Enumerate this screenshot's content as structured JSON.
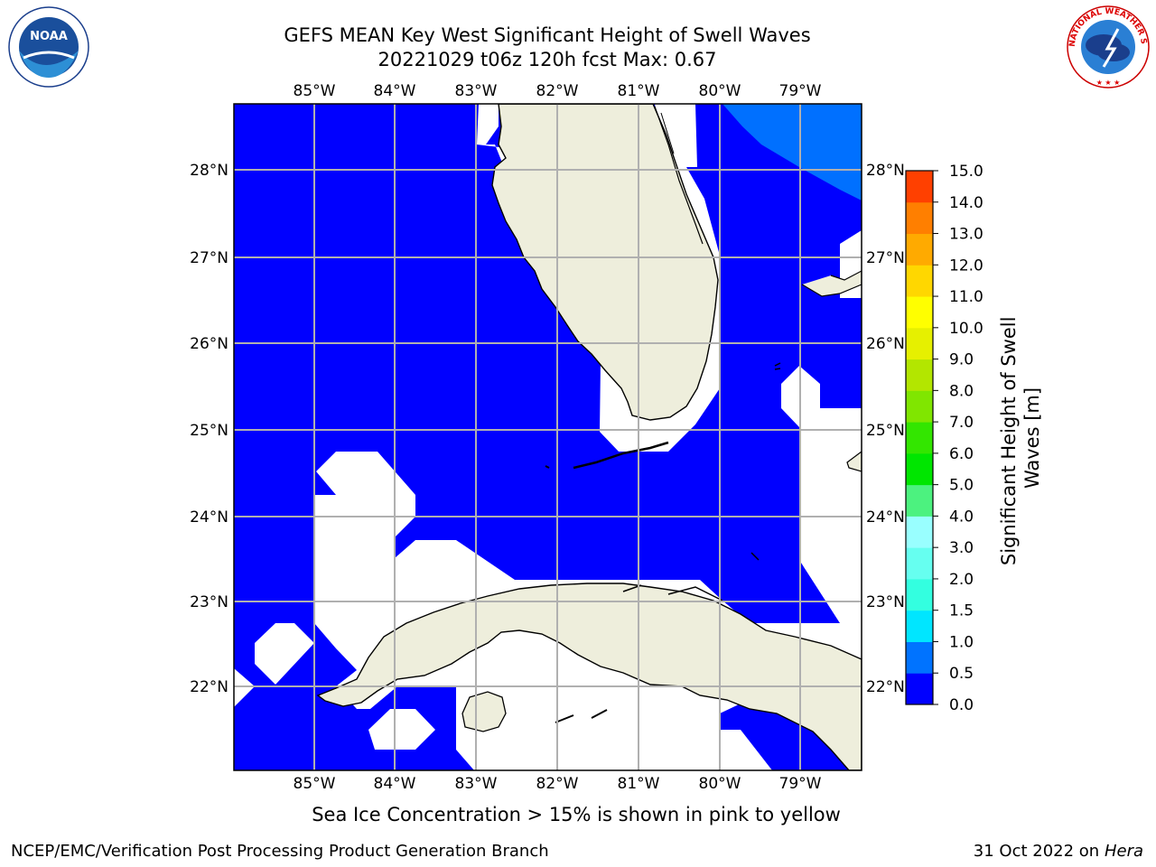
{
  "title": {
    "line1": "GEFS MEAN Key West Significant Height of Swell Waves",
    "line2": "20221029 t06z 120h fcst   Max: 0.67"
  },
  "map": {
    "lon_labels": [
      "85°W",
      "84°W",
      "83°W",
      "82°W",
      "81°W",
      "80°W",
      "79°W"
    ],
    "lat_labels": [
      "28°N",
      "27°N",
      "26°N",
      "25°N",
      "24°N",
      "23°N",
      "22°N"
    ],
    "colors": {
      "ocean_low": "#0000ff",
      "ocean_mid": "#0070ff",
      "land": "#eeeedc",
      "grid": "#b0b0b0"
    }
  },
  "colorbar": {
    "label": "Significant Height of Swell Waves [m]",
    "ticks": [
      "0.0",
      "0.5",
      "1.0",
      "1.5",
      "2.0",
      "3.0",
      "4.0",
      "5.0",
      "6.0",
      "7.0",
      "8.0",
      "9.0",
      "10.0",
      "11.0",
      "12.0",
      "13.0",
      "14.0",
      "15.0"
    ],
    "colors": [
      "#0000ff",
      "#0073ff",
      "#00e6ff",
      "#33ffe0",
      "#66fff0",
      "#99ffff",
      "#4cf27f",
      "#00e600",
      "#33e600",
      "#80e600",
      "#b3e600",
      "#e6f000",
      "#ffff00",
      "#ffd700",
      "#ffaa00",
      "#ff7f00",
      "#ff4000",
      "#ff0000"
    ]
  },
  "logos": {
    "noaa": "NOAA",
    "nws": "NATIONAL WEATHER SERVICE"
  },
  "footnote": "Sea Ice Concentration > 15% is shown in pink to yellow",
  "footer": {
    "left": "NCEP/EMC/Verification Post Processing Product Generation Branch",
    "right_prefix": "31 Oct 2022 on ",
    "right_host": "Hera"
  }
}
